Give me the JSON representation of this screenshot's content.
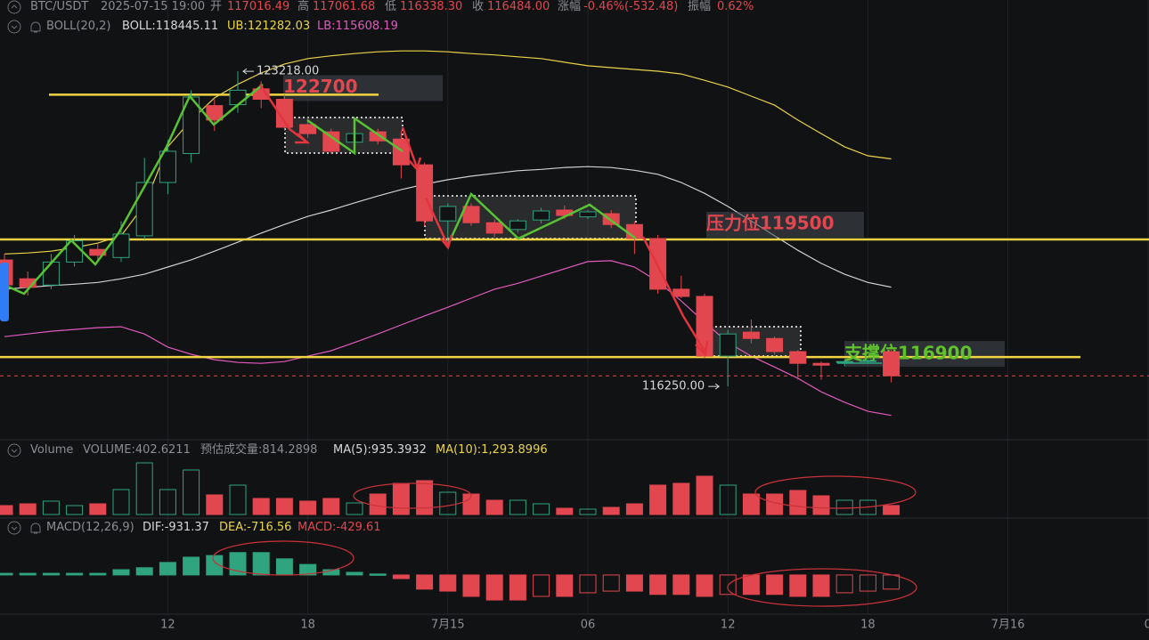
{
  "chart_data": {
    "type": "candlestick",
    "header": {
      "symbol": "BTC/USDT",
      "time": "2025-07-15 19:00",
      "open_label": "开",
      "open": "117016.49",
      "high_label": "高",
      "high": "117061.68",
      "low_label": "低",
      "low": "116338.30",
      "close_label": "收",
      "close": "116484.00",
      "change_label": "涨幅",
      "change": "-0.46%(-532.48)",
      "amplitude_label": "振幅",
      "amplitude": "0.62%"
    },
    "boll_header": {
      "name": "BOLL(20,2)",
      "mid": "BOLL:118445.11",
      "upper": "UB:121282.03",
      "lower": "LB:115608.19"
    },
    "volume_header": {
      "name": "Volume",
      "volume": "VOLUME:402.6211",
      "estimate": "预估成交量:814.2898",
      "ma5": "MA(5):935.3932",
      "ma10": "MA(10):1,293.8996"
    },
    "macd_header": {
      "name": "MACD(12,26,9)",
      "dif": "DIF:-931.37",
      "dea": "DEA:-716.56",
      "macd": "MACD:-429.61"
    },
    "open": [
      119046,
      118630,
      118490,
      119000,
      119280,
      119100,
      119580,
      120760,
      121400,
      122460,
      122480,
      122830,
      122600,
      122040,
      121880,
      121650,
      121880,
      121720,
      121150,
      119910,
      120230,
      119870,
      119720,
      119930,
      120150,
      120000,
      120070,
      119830,
      119520,
      118400,
      118240,
      116920,
      117450,
      117310,
      117020,
      116760,
      116780,
      116800,
      117016.49
    ],
    "high": [
      119180,
      118790,
      119180,
      119600,
      119400,
      119900,
      121300,
      121700,
      122800,
      122600,
      123218,
      123000,
      122700,
      122200,
      121950,
      121900,
      121950,
      121900,
      121200,
      120300,
      120300,
      119950,
      119950,
      120200,
      120250,
      120150,
      120150,
      119900,
      119600,
      118700,
      118300,
      117500,
      117730,
      117350,
      117050,
      116800,
      116850,
      116850,
      117061.68
    ],
    "low": [
      118300,
      118260,
      118400,
      118900,
      119050,
      119000,
      119500,
      120500,
      121200,
      121900,
      122300,
      122400,
      121900,
      121750,
      121400,
      121550,
      121600,
      120850,
      119800,
      119450,
      119800,
      119550,
      119650,
      119850,
      119950,
      119950,
      119750,
      119180,
      118300,
      118200,
      116880,
      116250,
      117200,
      116950,
      116400,
      116400,
      116700,
      116750,
      116338.3
    ],
    "close": [
      118495,
      118440,
      119000,
      119470,
      119150,
      119620,
      120760,
      121450,
      122650,
      122140,
      122800,
      122600,
      121980,
      121840,
      121450,
      121840,
      121680,
      121150,
      119910,
      120230,
      119870,
      119640,
      119910,
      120130,
      120030,
      120110,
      119830,
      119520,
      118400,
      118240,
      116920,
      117410,
      117310,
      117020,
      116760,
      116720,
      116800,
      116820,
      116484.0
    ],
    "boll": {
      "upper": [
        119180,
        119200,
        119240,
        119320,
        119420,
        119580,
        120270,
        121550,
        122140,
        122630,
        122930,
        123180,
        123380,
        123500,
        123560,
        123610,
        123650,
        123670,
        123670,
        123650,
        123610,
        123580,
        123540,
        123500,
        123420,
        123340,
        123300,
        123260,
        123220,
        123160,
        123020,
        122870,
        122670,
        122470,
        122140,
        121840,
        121550,
        121350,
        121282.03
      ],
      "mid": [
        118400,
        118440,
        118480,
        118510,
        118550,
        118630,
        118730,
        118890,
        119050,
        119240,
        119440,
        119640,
        119830,
        120010,
        120150,
        120310,
        120460,
        120600,
        120720,
        120820,
        120900,
        120960,
        121020,
        121050,
        121090,
        121110,
        121090,
        121030,
        120940,
        120760,
        120520,
        120230,
        119910,
        119580,
        119260,
        118970,
        118730,
        118550,
        118445.11
      ],
      "lower": [
        117350,
        117410,
        117470,
        117510,
        117550,
        117570,
        117410,
        117120,
        116960,
        116840,
        116780,
        116760,
        116800,
        116920,
        117040,
        117220,
        117410,
        117610,
        117810,
        118000,
        118200,
        118400,
        118530,
        118690,
        118850,
        119010,
        119030,
        118890,
        118570,
        118140,
        117670,
        117220,
        116920,
        116680,
        116430,
        116130,
        115900,
        115700,
        115608.19
      ],
      "upper_color": "#e8d44a",
      "mid_color": "#d0d0d0",
      "lower_color": "#e05bbd"
    },
    "ylim": [
      115150,
      124795
    ],
    "volume": [
      400,
      480,
      600,
      400,
      480,
      1120,
      2320,
      1120,
      2000,
      880,
      1320,
      720,
      720,
      600,
      720,
      520,
      920,
      1400,
      1520,
      1000,
      920,
      640,
      640,
      480,
      280,
      240,
      320,
      480,
      1320,
      1400,
      1720,
      1320,
      920,
      920,
      1080,
      840,
      640,
      640,
      402.6211
    ],
    "volume_ylim": [
      0,
      2400
    ],
    "macd": [
      50,
      50,
      50,
      50,
      50,
      160,
      220,
      380,
      540,
      590,
      680,
      680,
      490,
      320,
      160,
      80,
      30,
      -110,
      -430,
      -490,
      -650,
      -760,
      -760,
      -650,
      -650,
      -540,
      -490,
      -490,
      -590,
      -590,
      -650,
      -590,
      -590,
      -590,
      -650,
      -650,
      -540,
      -490,
      -429.61
    ],
    "macd_ylim": [
      -1190,
      1160
    ],
    "up_color": "#2fa47e",
    "down_color": "#e2474f",
    "xticks": [
      {
        "value": 7,
        "label": "12"
      },
      {
        "value": 13,
        "label": "18"
      },
      {
        "value": 19,
        "label": "7月15"
      },
      {
        "value": 25,
        "label": "06"
      },
      {
        "value": 31,
        "label": "12"
      },
      {
        "value": 37,
        "label": "18"
      },
      {
        "value": 43,
        "label": "7月16"
      },
      {
        "value": 49,
        "label": "0"
      }
    ],
    "levels": [
      {
        "value": 122700,
        "label": "122700",
        "color": "#e2474f"
      },
      {
        "value": 119500,
        "label": "压力位119500",
        "color": "#e2474f"
      },
      {
        "value": 116900,
        "label": "支撑位116900",
        "color": "#5fc12c"
      }
    ],
    "last_price": 116484,
    "max_label": {
      "value": 123218,
      "label": "123218.00"
    },
    "min_label": {
      "value": 116250,
      "label": "116250.00"
    }
  }
}
